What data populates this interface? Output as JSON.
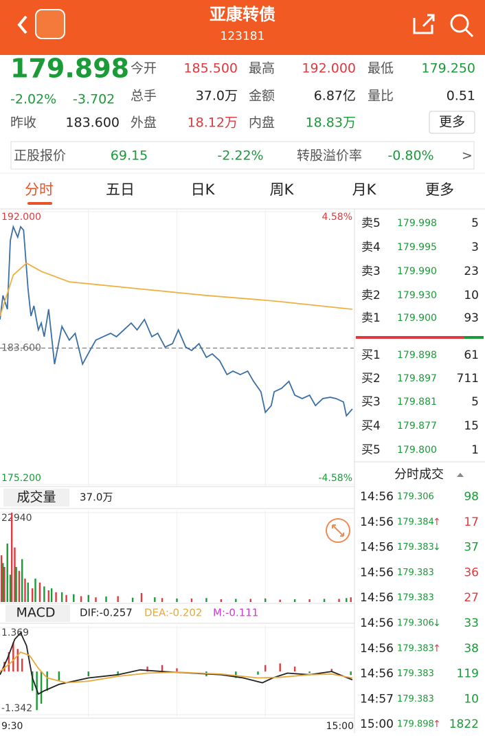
{
  "header": {
    "title": "亚康转债",
    "code": "123181"
  },
  "quote": {
    "price": "179.898",
    "change_pct": "-2.02%",
    "change": "-3.702",
    "fields": [
      {
        "label": "今开",
        "value": "185.500"
      },
      {
        "label": "最高",
        "value": "192.000"
      },
      {
        "label": "最低",
        "value": "179.250"
      },
      {
        "label": "总手",
        "value": "37.0万"
      },
      {
        "label": "金额",
        "value": "6.87亿"
      },
      {
        "label": "量比",
        "value": "0.51"
      },
      {
        "label": "昨收",
        "value": "183.600"
      },
      {
        "label": "外盘",
        "value": "18.12万"
      },
      {
        "label": "内盘",
        "value": "18.83万"
      }
    ],
    "more_button": "更多"
  },
  "stock_bar": {
    "label": "正股报价",
    "price": "69.15",
    "change": "-2.22%",
    "premium_label": "转股溢价率",
    "premium": "-0.80%",
    "arrow": ">"
  },
  "tabs": [
    "分时",
    "五日",
    "日K",
    "周K",
    "月K",
    "更多"
  ],
  "order_book": {
    "asks": [
      {
        "label": "卖5",
        "price": "179.998",
        "volume": "5"
      },
      {
        "label": "卖4",
        "price": "179.995",
        "volume": "3"
      },
      {
        "label": "卖3",
        "price": "179.990",
        "volume": "23"
      },
      {
        "label": "卖2",
        "price": "179.930",
        "volume": "10"
      },
      {
        "label": "卖1",
        "price": "179.900",
        "volume": "93"
      }
    ],
    "bids": [
      {
        "label": "买1",
        "price": "179.898",
        "volume": "61"
      },
      {
        "label": "买2",
        "price": "179.897",
        "volume": "711"
      },
      {
        "label": "买3",
        "price": "179.881",
        "volume": "5"
      },
      {
        "label": "买4",
        "price": "179.877",
        "volume": "15"
      },
      {
        "label": "买5",
        "price": "179.800",
        "volume": "1"
      }
    ]
  },
  "trades": {
    "title": "分时成交",
    "rows": [
      {
        "time": "14:56",
        "price": "179.306",
        "arrow": "",
        "volume": "98",
        "color": "#1a9b38"
      },
      {
        "time": "14:56",
        "price": "179.384",
        "arrow": "↑",
        "volume": "17",
        "color": "#e0393e"
      },
      {
        "time": "14:56",
        "price": "179.383",
        "arrow": "↓",
        "volume": "37",
        "color": "#1a9b38"
      },
      {
        "time": "14:56",
        "price": "179.383",
        "arrow": "",
        "volume": "36",
        "color": "#e0393e"
      },
      {
        "time": "14:56",
        "price": "179.383",
        "arrow": "",
        "volume": "27",
        "color": "#e0393e"
      },
      {
        "time": "14:56",
        "price": "179.306",
        "arrow": "↓",
        "volume": "33",
        "color": "#1a9b38"
      },
      {
        "time": "14:56",
        "price": "179.383",
        "arrow": "↑",
        "volume": "38",
        "color": "#1a9b38"
      },
      {
        "time": "14:56",
        "price": "179.383",
        "arrow": "",
        "volume": "119",
        "color": "#1a9b38"
      },
      {
        "time": "14:57",
        "price": "179.383",
        "arrow": "",
        "volume": "10",
        "color": "#1a9b38"
      },
      {
        "time": "15:00",
        "price": "179.898",
        "arrow": "↑",
        "volume": "1822",
        "color": "#1a9b38"
      }
    ]
  },
  "chart_data": [
    {
      "type": "line",
      "xlim": [
        0,
        240
      ],
      "xgrid": [
        60,
        120,
        180
      ],
      "ylim": [
        175.2,
        192
      ],
      "yticks": [
        {
          "value": 192,
          "label": "192.000"
        },
        {
          "value": 183.6,
          "label": "183.600"
        },
        {
          "value": 175.2,
          "label": "175.200"
        }
      ],
      "y2lim": [
        -4.58,
        4.58
      ],
      "y2ticks": [
        {
          "value": 4.58,
          "label": "4.58%"
        },
        {
          "value": -4.58,
          "label": "-4.58%"
        }
      ],
      "series": [
        {
          "color": "#3a6ea5",
          "x": [
            0,
            2,
            5,
            7,
            9,
            12,
            14,
            16,
            19,
            21,
            23,
            26,
            28,
            30,
            33,
            35,
            37,
            42,
            47,
            51,
            56,
            61,
            65,
            70,
            75,
            79,
            84,
            89,
            93,
            98,
            103,
            107,
            112,
            117,
            121,
            126,
            130,
            135,
            140,
            144,
            149,
            154,
            158,
            163,
            168,
            172,
            177,
            180,
            184,
            186,
            191,
            196,
            200,
            205,
            210,
            214,
            219,
            224,
            228,
            233,
            235,
            239
          ],
          "values": [
            185.36,
            186.84,
            185.99,
            190.22,
            191.07,
            190.43,
            191.07,
            190.86,
            187.26,
            185.57,
            186.2,
            184.72,
            185.14,
            184.3,
            185.99,
            184.3,
            182.61,
            184.93,
            184.09,
            184.51,
            182.61,
            183.45,
            184.09,
            184.3,
            184.51,
            184.3,
            184.72,
            185.14,
            184.72,
            185.36,
            184.3,
            184.51,
            183.66,
            183.87,
            184.72,
            183.66,
            183.45,
            183.87,
            183.03,
            183.24,
            182.82,
            181.97,
            182.18,
            181.97,
            182.18,
            181.55,
            180.91,
            179.64,
            180.06,
            180.91,
            181.12,
            181.55,
            180.7,
            180.49,
            180.7,
            180.06,
            180.49,
            180.57,
            180.49,
            180.28,
            179.43,
            179.85
          ]
        },
        {
          "color": "#f0b040",
          "x": [
            0,
            9,
            18,
            28,
            47,
            93,
            140,
            186,
            239
          ],
          "values": [
            185.57,
            188.1,
            188.83,
            188.32,
            187.68,
            187.26,
            186.84,
            186.5,
            185.99
          ]
        }
      ]
    },
    {
      "type": "bar",
      "title": "成交量",
      "subtitle": "37.0万",
      "xlim": [
        0,
        240
      ],
      "ylim": [
        0,
        22940
      ],
      "yticks": [
        22940
      ],
      "series": [
        {
          "color": "#e0393e",
          "x": [
            1,
            3,
            8,
            10,
            13,
            17,
            22,
            27,
            33,
            38,
            45,
            55,
            65,
            80,
            96,
            110,
            130,
            150,
            170,
            190,
            210,
            230,
            238
          ],
          "values": [
            12000,
            9000,
            22940,
            14000,
            8000,
            6000,
            3500,
            5000,
            3000,
            2500,
            1800,
            1500,
            1200,
            1500,
            2300,
            1000,
            900,
            700,
            800,
            600,
            700,
            800,
            1200
          ]
        },
        {
          "color": "#1a9b38",
          "x": [
            2,
            5,
            7,
            11,
            15,
            19,
            24,
            30,
            35,
            42,
            50,
            60,
            72,
            90,
            105,
            120,
            140,
            160,
            180,
            200,
            220,
            235
          ],
          "values": [
            10000,
            15000,
            7000,
            9000,
            11000,
            5000,
            6000,
            4000,
            3500,
            2500,
            2000,
            1800,
            1400,
            1100,
            1200,
            900,
            1000,
            800,
            900,
            700,
            800,
            1000
          ]
        }
      ]
    },
    {
      "type": "line",
      "title": "MACD",
      "xlim": [
        0,
        240
      ],
      "ylim": [
        -1.342,
        1.369
      ],
      "yticks": [
        1.369,
        -1.342
      ],
      "xticks": [
        {
          "value": 0,
          "label": "9:30"
        },
        {
          "value": 240,
          "label": "15:00"
        }
      ],
      "bar_label": "M:-0.111",
      "bar_label_color": "#d03ad0",
      "bars": [
        {
          "color": "#e0393e",
          "x": [
            3,
            6,
            9,
            12,
            15,
            100,
            110,
            120,
            180,
            190,
            200,
            225
          ],
          "values": [
            0.3,
            0.6,
            0.9,
            0.7,
            0.4,
            0.15,
            0.2,
            0.1,
            0.2,
            0.25,
            0.15,
            0.08
          ]
        },
        {
          "color": "#1a9b38",
          "x": [
            22,
            25,
            28,
            32,
            40,
            60,
            80,
            140,
            160,
            175,
            210,
            238
          ],
          "values": [
            -0.6,
            -1.2,
            -1,
            -0.6,
            -0.3,
            -0.15,
            -0.1,
            -0.15,
            -0.2,
            -0.1,
            -0.05,
            -0.11
          ]
        }
      ],
      "series": [
        {
          "name": "DIF:-0.257",
          "color": "#222222",
          "x": [
            0,
            5,
            10,
            14,
            18,
            22,
            26,
            30,
            40,
            60,
            80,
            95,
            110,
            130,
            150,
            165,
            178,
            185,
            195,
            210,
            225,
            239
          ],
          "values": [
            -0.1,
            0.4,
            1,
            1.2,
            0.8,
            -0.2,
            -0.7,
            -0.6,
            -0.4,
            -0.2,
            -0.1,
            0.05,
            0,
            -0.05,
            -0.1,
            -0.2,
            -0.35,
            -0.2,
            -0.05,
            -0.1,
            0,
            -0.257
          ]
        },
        {
          "name": "DEA:-0.202",
          "color": "#e8a93a",
          "x": [
            0,
            8,
            14,
            20,
            26,
            32,
            45,
            60,
            80,
            100,
            120,
            150,
            175,
            190,
            210,
            225,
            239
          ],
          "values": [
            0,
            0.3,
            0.6,
            0.5,
            0.1,
            -0.2,
            -0.35,
            -0.3,
            -0.15,
            -0.05,
            -0.02,
            -0.08,
            -0.2,
            -0.18,
            -0.1,
            -0.08,
            -0.202
          ]
        }
      ]
    }
  ]
}
